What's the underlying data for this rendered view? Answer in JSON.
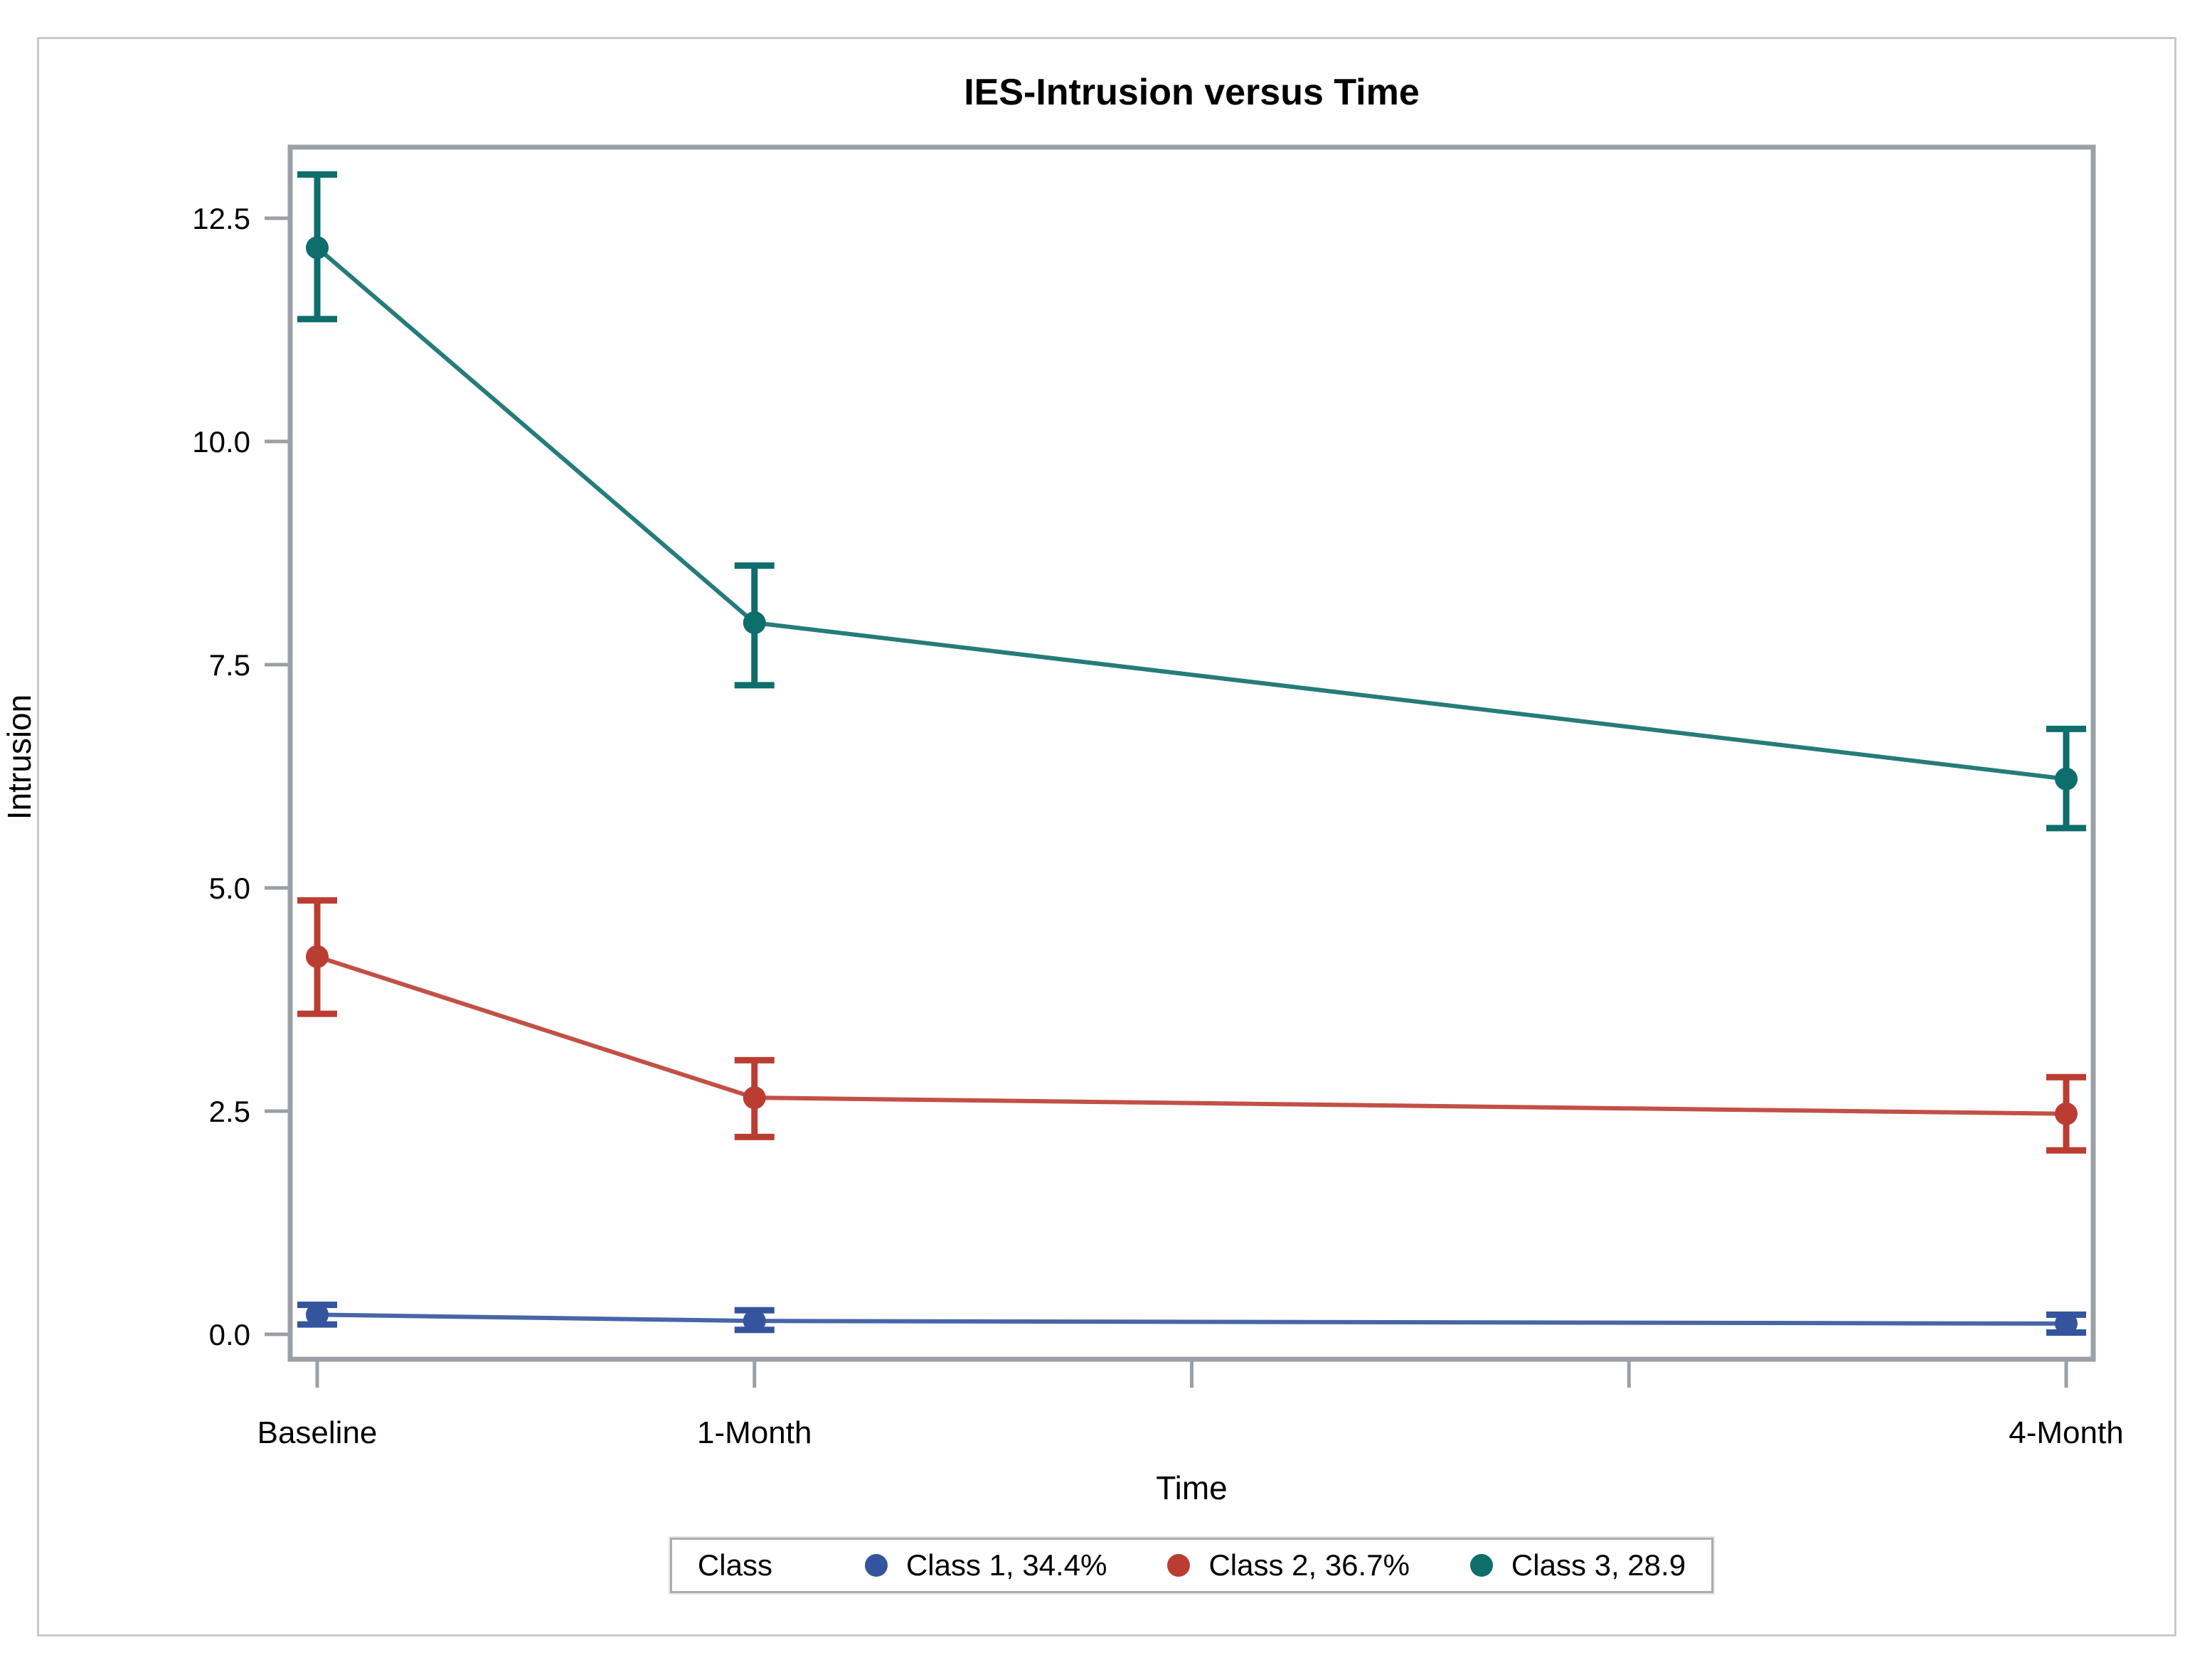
{
  "figure": {
    "title": "IES-Intrusion versus Time",
    "x_axis": {
      "label": "Time",
      "tick_months": [
        0,
        1,
        2,
        3,
        4
      ],
      "labeled_ticks": [
        {
          "month": 0,
          "label": "Baseline"
        },
        {
          "month": 1,
          "label": "1-Month"
        },
        {
          "month": 4,
          "label": "4-Month"
        }
      ]
    },
    "y_axis": {
      "label": "Intrusion",
      "tick_labels": [
        "0.0",
        "2.5",
        "5.0",
        "7.5",
        "10.0",
        "12.5"
      ]
    },
    "legend": {
      "title": "Class"
    },
    "colors": {
      "axis_gray": "#9aa0a5",
      "frame_gray": "#c6cacc",
      "class1_blue": "#34549e",
      "class2_red": "#bb3d32",
      "class3_teal": "#0d6e6c"
    }
  },
  "chart_data": {
    "type": "line",
    "title": "IES-Intrusion versus Time",
    "xlabel": "Time",
    "ylabel": "Intrusion",
    "x_categories": [
      "Baseline",
      "1-Month",
      "4-Month"
    ],
    "x_months": [
      0,
      1,
      4
    ],
    "x_tick_months": [
      0,
      1,
      2,
      3,
      4
    ],
    "ylim": [
      0,
      12.5
    ],
    "y_ticks": [
      0,
      2.5,
      5,
      7.5,
      10,
      12.5
    ],
    "grid": false,
    "legend_position": "bottom",
    "error_bars": true,
    "series": [
      {
        "name": "Class 1, 34.4%",
        "color": "#34549e",
        "values": [
          0.22,
          0.15,
          0.12
        ],
        "ci_low": [
          0.11,
          0.05,
          0.02
        ],
        "ci_high": [
          0.33,
          0.27,
          0.22
        ]
      },
      {
        "name": "Class 2, 36.7%",
        "color": "#bb3d32",
        "values": [
          4.23,
          2.65,
          2.47
        ],
        "ci_low": [
          3.59,
          2.21,
          2.06
        ],
        "ci_high": [
          4.86,
          3.07,
          2.88
        ]
      },
      {
        "name": "Class 3, 28.9",
        "color": "#0d6e6c",
        "values": [
          12.17,
          7.97,
          6.22
        ],
        "ci_low": [
          11.37,
          7.27,
          5.67
        ],
        "ci_high": [
          12.99,
          8.61,
          6.78
        ]
      }
    ]
  }
}
